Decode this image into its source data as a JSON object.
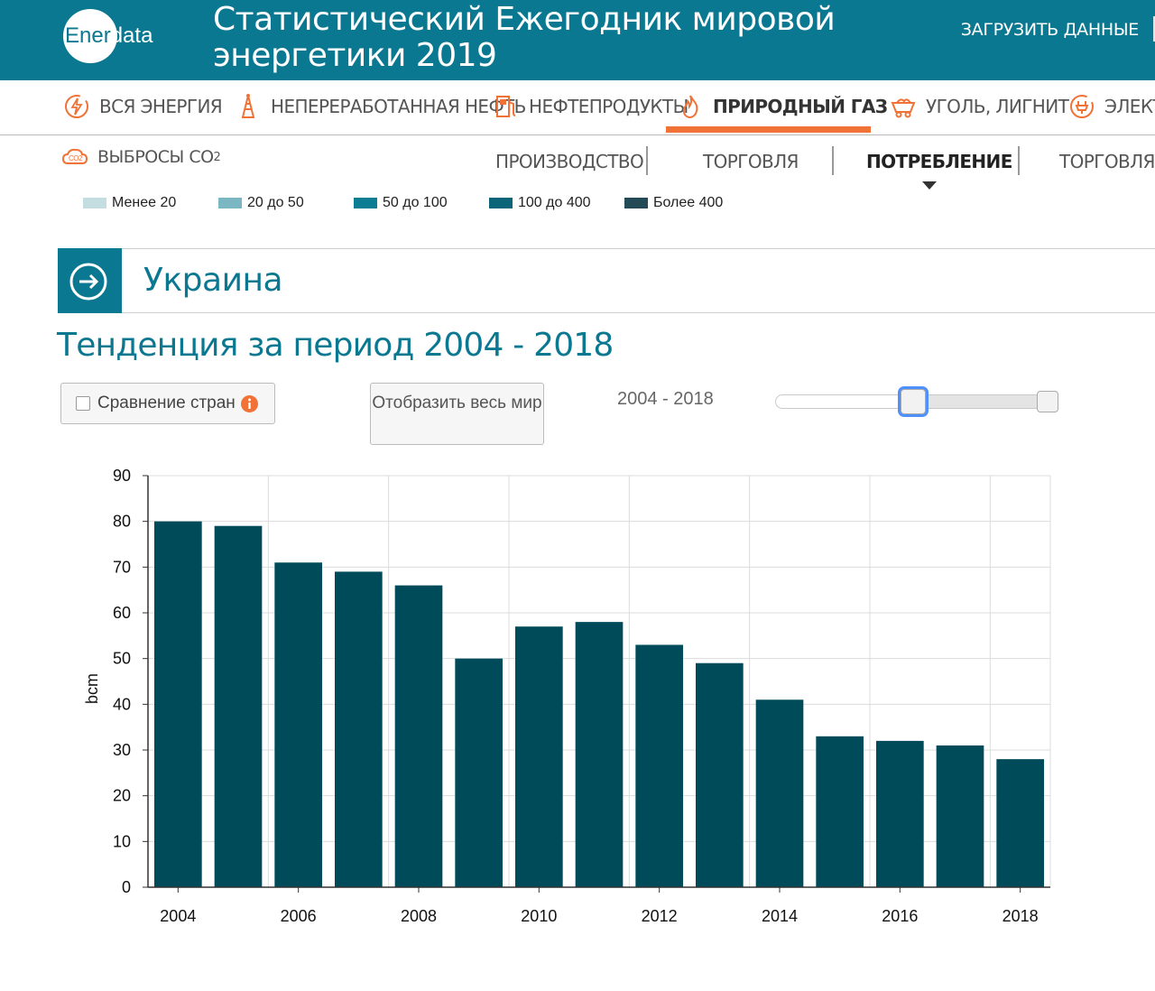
{
  "header": {
    "logo_prefix": "Ener",
    "logo_suffix": "data",
    "title": "Статистический Ежегодник мировой энергетики 2019",
    "download_label": "ЗАГРУЗИТЬ ДАННЫЕ"
  },
  "nav": {
    "items": [
      {
        "label": "ВСЯ ЭНЕРГИЯ",
        "icon": "lightning-icon"
      },
      {
        "label": "НЕПЕРЕРАБОТАННАЯ НЕФТЬ",
        "icon": "oil-rig-icon"
      },
      {
        "label": "НЕФТЕПРОДУКТЫ",
        "icon": "fuel-pump-icon"
      },
      {
        "label": "ПРИРОДНЫЙ ГАЗ",
        "icon": "flame-icon",
        "active": true
      },
      {
        "label": "УГОЛЬ, ЛИГНИТ",
        "icon": "coal-cart-icon"
      },
      {
        "label": "ЭЛЕКТР",
        "icon": "plug-icon"
      }
    ],
    "active_color": "#f07236"
  },
  "subnav": {
    "co2_label": "ВЫБРОСЫ CO",
    "co2_sub": "2",
    "tabs": [
      {
        "label": "ПРОИЗВОДСТВО"
      },
      {
        "label": "ТОРГОВЛЯ"
      },
      {
        "label": "ПОТРЕБЛЕНИЕ",
        "active": true
      },
      {
        "label": "ТОРГОВЛЯ СП"
      }
    ]
  },
  "legend": [
    {
      "label": "Менее 20",
      "color": "#c4dde0"
    },
    {
      "label": "20 до 50",
      "color": "#7bb6c3"
    },
    {
      "label": "50 до 100",
      "color": "#0c7d92"
    },
    {
      "label": "100 до 400",
      "color": "#0b6578"
    },
    {
      "label": "Более 400",
      "color": "#244a56"
    }
  ],
  "country": {
    "name": "Украина"
  },
  "trend_title": "Тенденция за период 2004 - 2018",
  "controls": {
    "compare_label": "Сравнение стран",
    "world_button_label": "Отобразить весь мир",
    "range_label": "2004 - 2018"
  },
  "colors": {
    "brand": "#0b7891",
    "bar": "#004b5a",
    "accent": "#f07236"
  },
  "chart_data": {
    "type": "bar",
    "categories": [
      "2004",
      "2005",
      "2006",
      "2007",
      "2008",
      "2009",
      "2010",
      "2011",
      "2012",
      "2013",
      "2014",
      "2015",
      "2016",
      "2017",
      "2018"
    ],
    "values": [
      80,
      79,
      71,
      69,
      66,
      50,
      57,
      58,
      53,
      49,
      41,
      33,
      32,
      31,
      28
    ],
    "xticks": [
      "2004",
      "2006",
      "2008",
      "2010",
      "2012",
      "2014",
      "2016",
      "2018"
    ],
    "ylabel": "bcm",
    "ylim": [
      0,
      90
    ],
    "yticks": [
      0,
      10,
      20,
      30,
      40,
      50,
      60,
      70,
      80,
      90
    ],
    "grid": true
  }
}
